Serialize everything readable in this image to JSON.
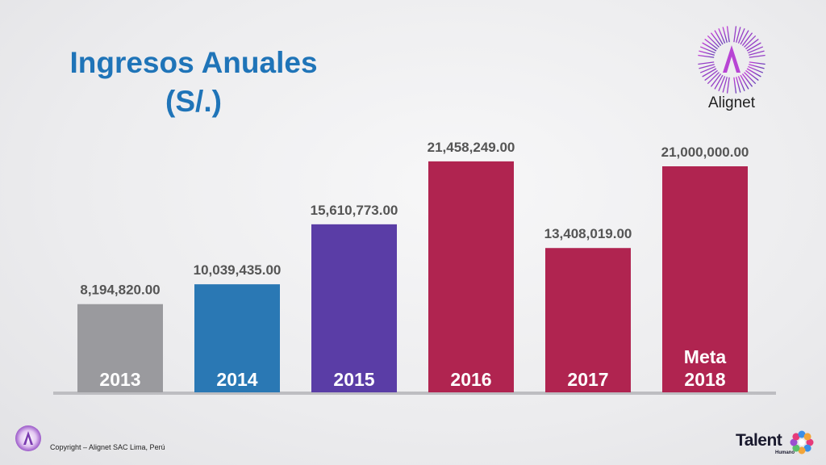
{
  "title": {
    "line1": "Ingresos Anuales",
    "line2": "(S/.)"
  },
  "brand": {
    "name": "Alignet",
    "logo_icon": "alignet-starburst-a-icon"
  },
  "footer": {
    "copyright": "Copyright – Alignet SAC Lima, Perú",
    "talent_logo_word": "Talent",
    "talent_logo_sub": "Humano"
  },
  "colors": {
    "title": "#1f74b8",
    "bar_2013": "#9a9a9e",
    "bar_2014": "#2a78b4",
    "bar_2015": "#5a3da6",
    "bar_2016": "#b02450",
    "bar_2017": "#b02450",
    "bar_meta": "#b02450",
    "label": "#555555"
  },
  "chart_data": {
    "type": "bar",
    "title": "Ingresos Anuales (S/.)",
    "categories": [
      "2013",
      "2014",
      "2015",
      "2016",
      "2017",
      "Meta 2018"
    ],
    "values": [
      8194820.0,
      10039435.0,
      15610773.0,
      21458249.0,
      13408019.0,
      21000000.0
    ],
    "value_labels": [
      "8,194,820.00",
      "10,039,435.00",
      "15,610,773.00",
      "21,458,249.00",
      "13,408,019.00",
      "21,000,000.00"
    ],
    "category_labels": [
      [
        "2013"
      ],
      [
        "2014"
      ],
      [
        "2015"
      ],
      [
        "2016"
      ],
      [
        "2017"
      ],
      [
        "Meta",
        "2018"
      ]
    ],
    "ylim": [
      0,
      24000000
    ],
    "grid": false,
    "legend": "none",
    "xlabel": "",
    "ylabel": ""
  }
}
